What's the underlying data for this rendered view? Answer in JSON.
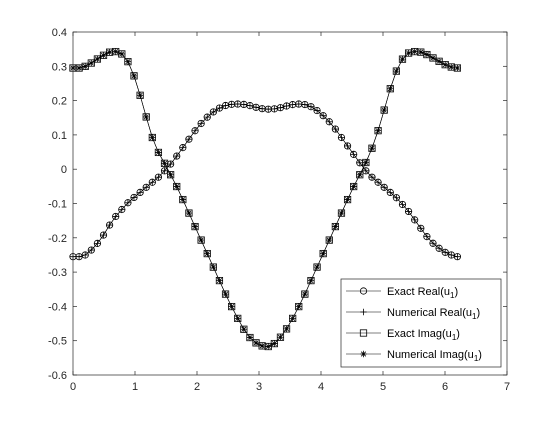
{
  "chart_data": {
    "type": "line",
    "title": "",
    "xlabel": "",
    "ylabel": "",
    "xlim": [
      0,
      7
    ],
    "ylim": [
      -0.6,
      0.4
    ],
    "xticks": [
      0,
      1,
      2,
      3,
      4,
      5,
      6,
      7
    ],
    "yticks": [
      -0.6,
      -0.5,
      -0.4,
      -0.3,
      -0.2,
      -0.1,
      0,
      0.1,
      0.2,
      0.3,
      0.4
    ],
    "x_tick_labels": [
      "0",
      "1",
      "2",
      "3",
      "4",
      "5",
      "6",
      "7"
    ],
    "y_tick_labels": [
      "-0.6",
      "-0.5",
      "-0.4",
      "-0.3",
      "-0.2",
      "-0.1",
      "0",
      "0.1",
      "0.2",
      "0.3",
      "0.4"
    ],
    "grid": false,
    "legend_position": "bottom-right",
    "line_color": "#000000",
    "x_range": [
      0,
      6.2
    ],
    "sample_count": 64,
    "series": [
      {
        "name": "Exact Real(u",
        "name_subscript": "1",
        "name_suffix": ")",
        "marker": "circle",
        "anchors": [
          [
            0,
            -0.255
          ],
          [
            0.1,
            -0.255
          ],
          [
            0.2,
            -0.25
          ],
          [
            0.3,
            -0.235
          ],
          [
            0.4,
            -0.215
          ],
          [
            0.5,
            -0.19
          ],
          [
            0.6,
            -0.16
          ],
          [
            0.7,
            -0.135
          ],
          [
            0.8,
            -0.115
          ],
          [
            0.9,
            -0.095
          ],
          [
            1.0,
            -0.08
          ],
          [
            1.1,
            -0.065
          ],
          [
            1.2,
            -0.05
          ],
          [
            1.3,
            -0.035
          ],
          [
            1.4,
            -0.02
          ],
          [
            1.5,
            0.0
          ],
          [
            1.6,
            0.02
          ],
          [
            1.7,
            0.045
          ],
          [
            1.8,
            0.07
          ],
          [
            1.9,
            0.095
          ],
          [
            2.0,
            0.12
          ],
          [
            2.1,
            0.14
          ],
          [
            2.2,
            0.158
          ],
          [
            2.3,
            0.172
          ],
          [
            2.4,
            0.182
          ],
          [
            2.5,
            0.188
          ],
          [
            2.6,
            0.19
          ],
          [
            2.7,
            0.19
          ],
          [
            2.8,
            0.188
          ],
          [
            2.9,
            0.183
          ],
          [
            3.0,
            0.178
          ],
          [
            3.1,
            0.175
          ],
          [
            3.2,
            0.175
          ],
          [
            3.3,
            0.177
          ],
          [
            3.4,
            0.182
          ],
          [
            3.5,
            0.187
          ],
          [
            3.6,
            0.19
          ],
          [
            3.7,
            0.19
          ],
          [
            3.8,
            0.186
          ],
          [
            3.9,
            0.176
          ],
          [
            4.0,
            0.162
          ],
          [
            4.1,
            0.145
          ],
          [
            4.2,
            0.125
          ],
          [
            4.3,
            0.1
          ],
          [
            4.4,
            0.075
          ],
          [
            4.5,
            0.05
          ],
          [
            4.6,
            0.025
          ],
          [
            4.7,
            0.0
          ],
          [
            4.8,
            -0.02
          ],
          [
            4.9,
            -0.035
          ],
          [
            5.0,
            -0.05
          ],
          [
            5.1,
            -0.065
          ],
          [
            5.2,
            -0.08
          ],
          [
            5.3,
            -0.1
          ],
          [
            5.4,
            -0.12
          ],
          [
            5.5,
            -0.145
          ],
          [
            5.6,
            -0.17
          ],
          [
            5.7,
            -0.195
          ],
          [
            5.8,
            -0.215
          ],
          [
            5.9,
            -0.23
          ],
          [
            6.0,
            -0.242
          ],
          [
            6.1,
            -0.25
          ],
          [
            6.2,
            -0.255
          ]
        ]
      },
      {
        "name": "Numerical Real(u",
        "name_subscript": "1",
        "name_suffix": ")",
        "marker": "plus",
        "anchors": [
          [
            0,
            -0.255
          ],
          [
            0.1,
            -0.255
          ],
          [
            0.2,
            -0.25
          ],
          [
            0.3,
            -0.235
          ],
          [
            0.4,
            -0.215
          ],
          [
            0.5,
            -0.19
          ],
          [
            0.6,
            -0.16
          ],
          [
            0.7,
            -0.135
          ],
          [
            0.8,
            -0.115
          ],
          [
            0.9,
            -0.095
          ],
          [
            1.0,
            -0.08
          ],
          [
            1.1,
            -0.065
          ],
          [
            1.2,
            -0.05
          ],
          [
            1.3,
            -0.035
          ],
          [
            1.4,
            -0.02
          ],
          [
            1.5,
            0.0
          ],
          [
            1.6,
            0.02
          ],
          [
            1.7,
            0.045
          ],
          [
            1.8,
            0.07
          ],
          [
            1.9,
            0.095
          ],
          [
            2.0,
            0.12
          ],
          [
            2.1,
            0.14
          ],
          [
            2.2,
            0.158
          ],
          [
            2.3,
            0.172
          ],
          [
            2.4,
            0.182
          ],
          [
            2.5,
            0.188
          ],
          [
            2.6,
            0.19
          ],
          [
            2.7,
            0.19
          ],
          [
            2.8,
            0.188
          ],
          [
            2.9,
            0.183
          ],
          [
            3.0,
            0.178
          ],
          [
            3.1,
            0.175
          ],
          [
            3.2,
            0.175
          ],
          [
            3.3,
            0.177
          ],
          [
            3.4,
            0.182
          ],
          [
            3.5,
            0.187
          ],
          [
            3.6,
            0.19
          ],
          [
            3.7,
            0.19
          ],
          [
            3.8,
            0.186
          ],
          [
            3.9,
            0.176
          ],
          [
            4.0,
            0.162
          ],
          [
            4.1,
            0.145
          ],
          [
            4.2,
            0.125
          ],
          [
            4.3,
            0.1
          ],
          [
            4.4,
            0.075
          ],
          [
            4.5,
            0.05
          ],
          [
            4.6,
            0.025
          ],
          [
            4.7,
            0.0
          ],
          [
            4.8,
            -0.02
          ],
          [
            4.9,
            -0.035
          ],
          [
            5.0,
            -0.05
          ],
          [
            5.1,
            -0.065
          ],
          [
            5.2,
            -0.08
          ],
          [
            5.3,
            -0.1
          ],
          [
            5.4,
            -0.12
          ],
          [
            5.5,
            -0.145
          ],
          [
            5.6,
            -0.17
          ],
          [
            5.7,
            -0.195
          ],
          [
            5.8,
            -0.215
          ],
          [
            5.9,
            -0.23
          ],
          [
            6.0,
            -0.242
          ],
          [
            6.1,
            -0.25
          ],
          [
            6.2,
            -0.255
          ]
        ]
      },
      {
        "name": "Exact Imag(u",
        "name_subscript": "1",
        "name_suffix": ")",
        "marker": "square",
        "anchors": [
          [
            0,
            0.295
          ],
          [
            0.1,
            0.295
          ],
          [
            0.2,
            0.3
          ],
          [
            0.3,
            0.31
          ],
          [
            0.4,
            0.322
          ],
          [
            0.5,
            0.333
          ],
          [
            0.6,
            0.342
          ],
          [
            0.7,
            0.343
          ],
          [
            0.8,
            0.335
          ],
          [
            0.9,
            0.31
          ],
          [
            1.0,
            0.265
          ],
          [
            1.1,
            0.205
          ],
          [
            1.2,
            0.14
          ],
          [
            1.3,
            0.08
          ],
          [
            1.4,
            0.04
          ],
          [
            1.5,
            0.01
          ],
          [
            1.6,
            -0.025
          ],
          [
            1.7,
            -0.06
          ],
          [
            1.8,
            -0.1
          ],
          [
            1.9,
            -0.14
          ],
          [
            2.0,
            -0.18
          ],
          [
            2.1,
            -0.22
          ],
          [
            2.2,
            -0.26
          ],
          [
            2.3,
            -0.3
          ],
          [
            2.4,
            -0.34
          ],
          [
            2.5,
            -0.38
          ],
          [
            2.6,
            -0.415
          ],
          [
            2.7,
            -0.45
          ],
          [
            2.8,
            -0.48
          ],
          [
            2.9,
            -0.5
          ],
          [
            3.0,
            -0.512
          ],
          [
            3.1,
            -0.518
          ],
          [
            3.2,
            -0.516
          ],
          [
            3.3,
            -0.5
          ],
          [
            3.4,
            -0.478
          ],
          [
            3.5,
            -0.45
          ],
          [
            3.6,
            -0.415
          ],
          [
            3.7,
            -0.38
          ],
          [
            3.8,
            -0.34
          ],
          [
            3.9,
            -0.3
          ],
          [
            4.0,
            -0.26
          ],
          [
            4.1,
            -0.22
          ],
          [
            4.2,
            -0.18
          ],
          [
            4.3,
            -0.14
          ],
          [
            4.4,
            -0.1
          ],
          [
            4.5,
            -0.06
          ],
          [
            4.6,
            -0.025
          ],
          [
            4.7,
            0.01
          ],
          [
            4.8,
            0.05
          ],
          [
            4.9,
            0.1
          ],
          [
            5.0,
            0.16
          ],
          [
            5.1,
            0.225
          ],
          [
            5.2,
            0.28
          ],
          [
            5.3,
            0.318
          ],
          [
            5.4,
            0.338
          ],
          [
            5.5,
            0.343
          ],
          [
            5.6,
            0.342
          ],
          [
            5.7,
            0.335
          ],
          [
            5.8,
            0.325
          ],
          [
            5.9,
            0.315
          ],
          [
            6.0,
            0.305
          ],
          [
            6.1,
            0.298
          ],
          [
            6.2,
            0.295
          ]
        ]
      },
      {
        "name": "Numerical Imag(u",
        "name_subscript": "1",
        "name_suffix": ")",
        "marker": "asterisk",
        "anchors": [
          [
            0,
            0.295
          ],
          [
            0.1,
            0.295
          ],
          [
            0.2,
            0.3
          ],
          [
            0.3,
            0.31
          ],
          [
            0.4,
            0.322
          ],
          [
            0.5,
            0.333
          ],
          [
            0.6,
            0.342
          ],
          [
            0.7,
            0.343
          ],
          [
            0.8,
            0.335
          ],
          [
            0.9,
            0.31
          ],
          [
            1.0,
            0.265
          ],
          [
            1.1,
            0.205
          ],
          [
            1.2,
            0.14
          ],
          [
            1.3,
            0.08
          ],
          [
            1.4,
            0.04
          ],
          [
            1.5,
            0.01
          ],
          [
            1.6,
            -0.025
          ],
          [
            1.7,
            -0.06
          ],
          [
            1.8,
            -0.1
          ],
          [
            1.9,
            -0.14
          ],
          [
            2.0,
            -0.18
          ],
          [
            2.1,
            -0.22
          ],
          [
            2.2,
            -0.26
          ],
          [
            2.3,
            -0.3
          ],
          [
            2.4,
            -0.34
          ],
          [
            2.5,
            -0.38
          ],
          [
            2.6,
            -0.415
          ],
          [
            2.7,
            -0.45
          ],
          [
            2.8,
            -0.48
          ],
          [
            2.9,
            -0.5
          ],
          [
            3.0,
            -0.512
          ],
          [
            3.1,
            -0.518
          ],
          [
            3.2,
            -0.516
          ],
          [
            3.3,
            -0.5
          ],
          [
            3.4,
            -0.478
          ],
          [
            3.5,
            -0.45
          ],
          [
            3.6,
            -0.415
          ],
          [
            3.7,
            -0.38
          ],
          [
            3.8,
            -0.34
          ],
          [
            3.9,
            -0.3
          ],
          [
            4.0,
            -0.26
          ],
          [
            4.1,
            -0.22
          ],
          [
            4.2,
            -0.18
          ],
          [
            4.3,
            -0.14
          ],
          [
            4.4,
            -0.1
          ],
          [
            4.5,
            -0.06
          ],
          [
            4.6,
            -0.025
          ],
          [
            4.7,
            0.01
          ],
          [
            4.8,
            0.05
          ],
          [
            4.9,
            0.1
          ],
          [
            5.0,
            0.16
          ],
          [
            5.1,
            0.225
          ],
          [
            5.2,
            0.28
          ],
          [
            5.3,
            0.318
          ],
          [
            5.4,
            0.338
          ],
          [
            5.5,
            0.343
          ],
          [
            5.6,
            0.342
          ],
          [
            5.7,
            0.335
          ],
          [
            5.8,
            0.325
          ],
          [
            5.9,
            0.315
          ],
          [
            6.0,
            0.305
          ],
          [
            6.1,
            0.298
          ],
          [
            6.2,
            0.295
          ]
        ]
      }
    ]
  }
}
